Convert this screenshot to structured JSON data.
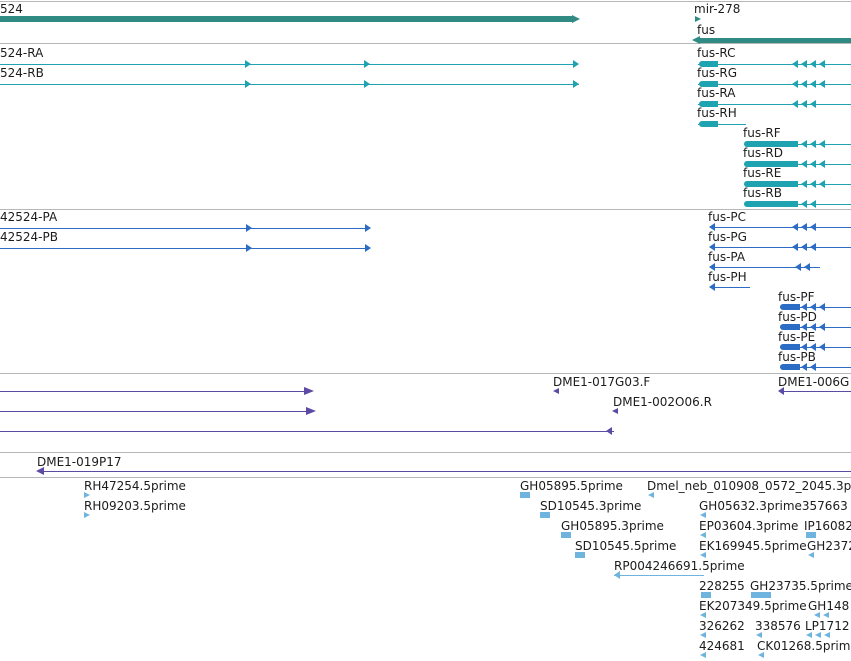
{
  "colors": {
    "gene": "#2f8b84",
    "transcript": "#1fa3b1",
    "protein": "#2d6cc4",
    "alignment": "#5c4aa4",
    "est": "#6fb3df",
    "divider": "#b7b7b7"
  },
  "tracks": {
    "gene": {
      "left_label": "524",
      "right_labels": [
        "mir-278",
        "fus"
      ]
    },
    "transcripts": {
      "left_labels": [
        "524-RA",
        "524-RB"
      ],
      "right_labels": [
        "fus-RC",
        "fus-RG",
        "fus-RA",
        "fus-RH",
        "fus-RF",
        "fus-RD",
        "fus-RE",
        "fus-RB"
      ]
    },
    "proteins": {
      "left_labels": [
        "42524-PA",
        "42524-PB"
      ],
      "right_labels": [
        "fus-PC",
        "fus-PG",
        "fus-PA",
        "fus-PH",
        "fus-PF",
        "fus-PD",
        "fus-PE",
        "fus-PB"
      ]
    },
    "alignments": {
      "labels": [
        "DME1-017G03.F",
        "DME1-002O06.R",
        "DME1-006G",
        "DME1-019P17"
      ]
    },
    "ests": {
      "labels": [
        "RH47254.5prime",
        "RH09203.5prime",
        "GH05895.5prime",
        "SD10545.3prime",
        "GH05895.3prime",
        "SD10545.5prime",
        "RP004246691.5prime",
        "Dmel_neb_010908_0572_2045.3p",
        "GH05632.3prime357663",
        "EP03604.3prime",
        "IP16082",
        "EK169945.5prime",
        "GH2372",
        "228255",
        "GH23735.5prime",
        "EK207349.5prime",
        "GH148",
        "326262",
        "338576",
        "LP1712",
        "424681",
        "CK01268.5prime"
      ]
    }
  }
}
